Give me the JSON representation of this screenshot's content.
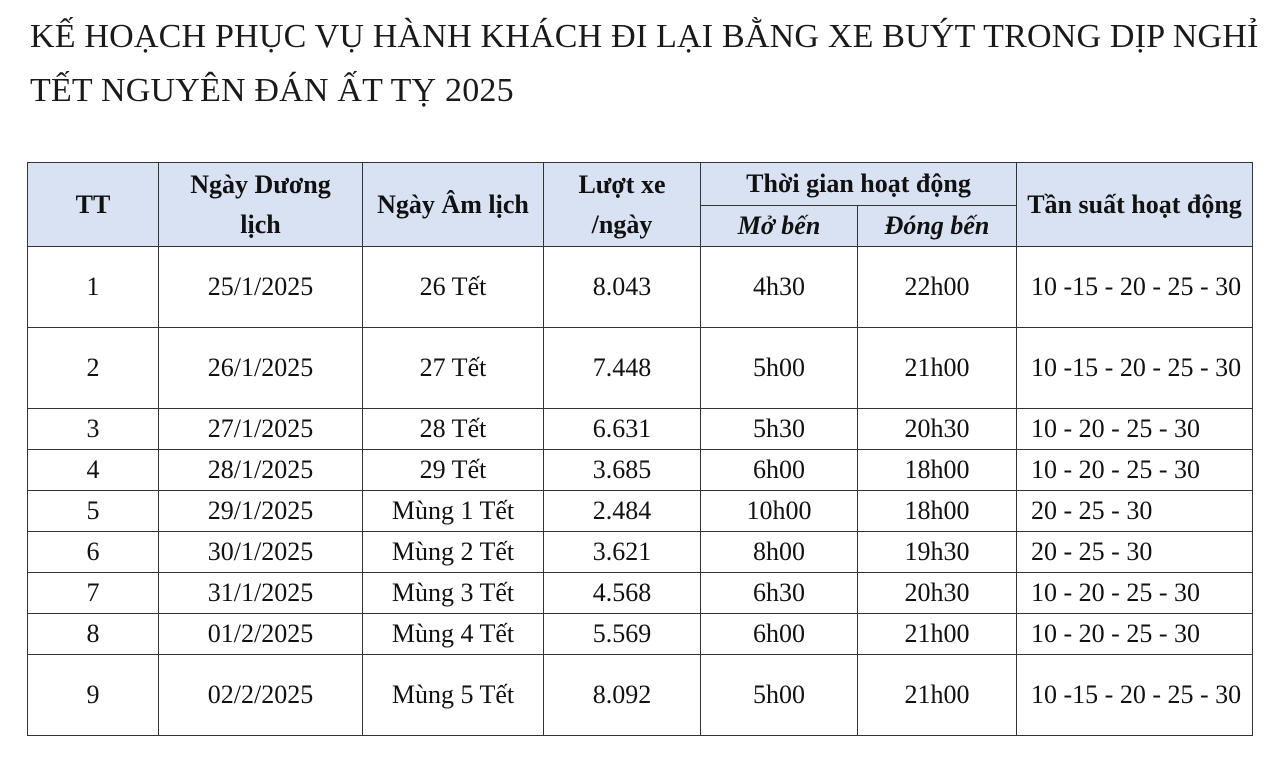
{
  "title": "KẾ HOẠCH PHỤC VỤ HÀNH KHÁCH ĐI LẠI BẰNG XE BUÝT TRONG DỊP NGHỈ TẾT NGUYÊN ĐÁN ẤT TỴ 2025",
  "table": {
    "headers": {
      "tt": "TT",
      "solar_date": "Ngày Dương lịch",
      "lunar_date": "Ngày Âm lịch",
      "trips": "Lượt xe /ngày",
      "operating_time": "Thời gian hoạt động",
      "open": "Mở bến",
      "close": "Đóng bến",
      "frequency": "Tần suất hoạt động"
    },
    "rows": [
      {
        "tt": "1",
        "solar": "25/1/2025",
        "lunar": "26 Tết",
        "trips": "8.043",
        "open": "4h30",
        "close": "22h00",
        "freq": "10 -15 - 20 - 25 - 30"
      },
      {
        "tt": "2",
        "solar": "26/1/2025",
        "lunar": "27 Tết",
        "trips": "7.448",
        "open": "5h00",
        "close": "21h00",
        "freq": "10 -15 - 20 - 25 - 30"
      },
      {
        "tt": "3",
        "solar": "27/1/2025",
        "lunar": "28 Tết",
        "trips": "6.631",
        "open": "5h30",
        "close": "20h30",
        "freq": "10 - 20 - 25 - 30"
      },
      {
        "tt": "4",
        "solar": "28/1/2025",
        "lunar": "29 Tết",
        "trips": "3.685",
        "open": "6h00",
        "close": "18h00",
        "freq": "10 - 20 - 25 - 30"
      },
      {
        "tt": "5",
        "solar": "29/1/2025",
        "lunar": "Mùng 1 Tết",
        "trips": "2.484",
        "open": "10h00",
        "close": "18h00",
        "freq": "20 - 25 - 30"
      },
      {
        "tt": "6",
        "solar": "30/1/2025",
        "lunar": "Mùng 2 Tết",
        "trips": "3.621",
        "open": "8h00",
        "close": "19h30",
        "freq": "20 - 25 - 30"
      },
      {
        "tt": "7",
        "solar": "31/1/2025",
        "lunar": "Mùng 3 Tết",
        "trips": "4.568",
        "open": "6h30",
        "close": "20h30",
        "freq": "10 - 20 - 25 - 30"
      },
      {
        "tt": "8",
        "solar": "01/2/2025",
        "lunar": "Mùng 4 Tết",
        "trips": "5.569",
        "open": "6h00",
        "close": "21h00",
        "freq": "10 - 20 - 25 - 30"
      },
      {
        "tt": "9",
        "solar": "02/2/2025",
        "lunar": "Mùng 5 Tết",
        "trips": "8.092",
        "open": "5h00",
        "close": "21h00",
        "freq": "10 -15 - 20 - 25 - 30"
      }
    ]
  }
}
